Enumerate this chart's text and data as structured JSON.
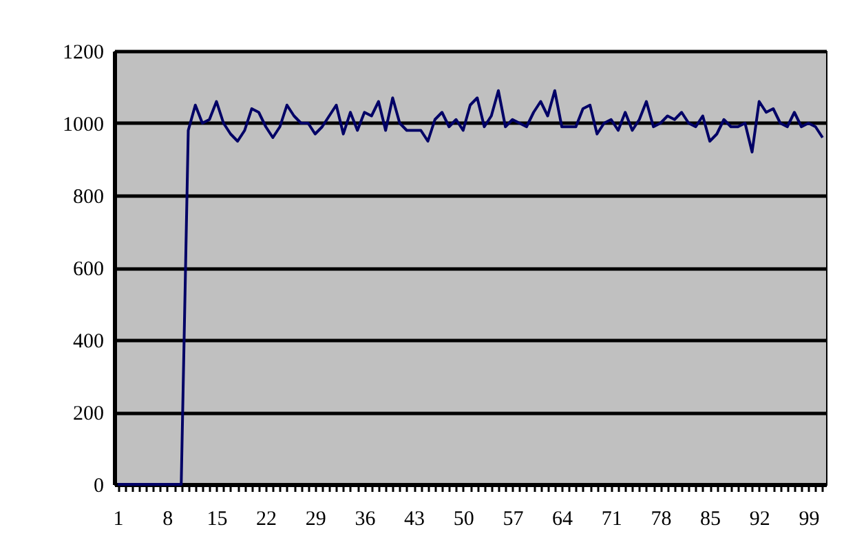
{
  "chart_data": {
    "type": "line",
    "categories": [
      "1",
      null,
      null,
      null,
      null,
      null,
      null,
      "8",
      null,
      null,
      null,
      null,
      null,
      null,
      "15",
      null,
      null,
      null,
      null,
      null,
      null,
      "22",
      null,
      null,
      null,
      null,
      null,
      null,
      "29",
      null,
      null,
      null,
      null,
      null,
      null,
      "36",
      null,
      null,
      null,
      null,
      null,
      null,
      "43",
      null,
      null,
      null,
      null,
      null,
      null,
      "50",
      null,
      null,
      null,
      null,
      null,
      null,
      "57",
      null,
      null,
      null,
      null,
      null,
      null,
      "64",
      null,
      null,
      null,
      null,
      null,
      null,
      "71",
      null,
      null,
      null,
      null,
      null,
      null,
      "78",
      null,
      null,
      null,
      null,
      null,
      null,
      "85",
      null,
      null,
      null,
      null,
      null,
      null,
      "92",
      null,
      null,
      null,
      null,
      null,
      null,
      "99",
      null,
      null
    ],
    "values": [
      0,
      0,
      0,
      0,
      0,
      0,
      0,
      0,
      0,
      0,
      980,
      1050,
      1000,
      1010,
      1060,
      1000,
      970,
      950,
      980,
      1040,
      1030,
      990,
      960,
      990,
      1050,
      1020,
      1000,
      1000,
      970,
      990,
      1020,
      1050,
      970,
      1030,
      980,
      1030,
      1020,
      1060,
      980,
      1070,
      1000,
      980,
      980,
      980,
      950,
      1010,
      1030,
      990,
      1010,
      980,
      1050,
      1070,
      990,
      1020,
      1090,
      990,
      1010,
      1000,
      990,
      1030,
      1060,
      1020,
      1090,
      990,
      990,
      990,
      1040,
      1050,
      970,
      1000,
      1010,
      980,
      1030,
      980,
      1010,
      1060,
      990,
      1000,
      1020,
      1010,
      1030,
      1000,
      990,
      1020,
      950,
      970,
      1010,
      990,
      990,
      1000,
      920,
      1060,
      1030,
      1040,
      1000,
      990,
      1030,
      990,
      1000,
      990,
      960
    ],
    "color": "#000066",
    "ylim": [
      0,
      1200
    ],
    "yticks": [
      0,
      200,
      400,
      600,
      800,
      1000,
      1200
    ],
    "grid": "y"
  }
}
